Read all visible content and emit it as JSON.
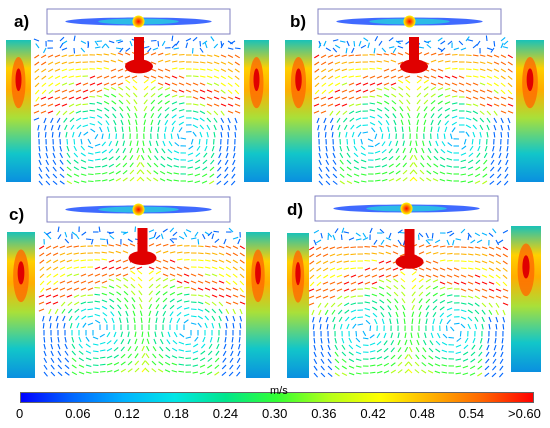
{
  "panels": [
    {
      "label": "a)"
    },
    {
      "label": "b)"
    },
    {
      "label": "c)"
    },
    {
      "label": "d)"
    }
  ],
  "legend": {
    "unit": "m/s",
    "ticks": [
      "0",
      "0.06",
      "0.12",
      "0.18",
      "0.24",
      "0.30",
      "0.36",
      "0.42",
      "0.48",
      "0.54",
      ">0.60"
    ],
    "colors": [
      "#0000ff",
      "#0066ff",
      "#00b3ff",
      "#00e6e6",
      "#00e68c",
      "#33ff33",
      "#b3ff1a",
      "#ffff00",
      "#ffb300",
      "#ff6600",
      "#ff0000"
    ]
  }
}
